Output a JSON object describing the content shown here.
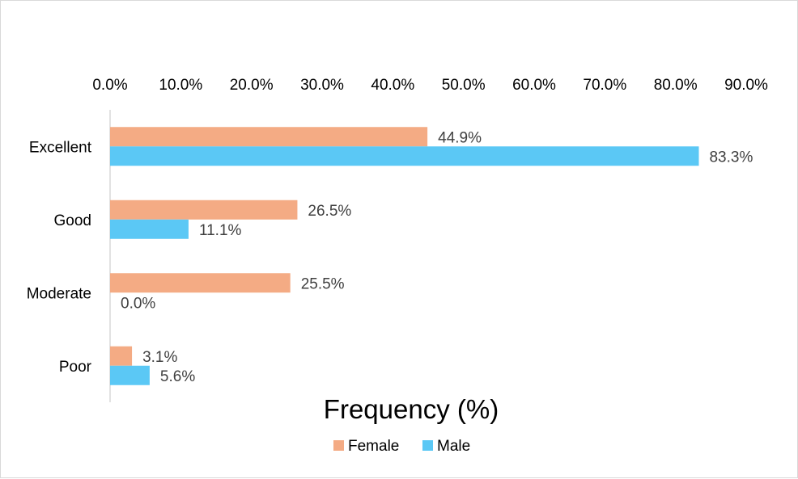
{
  "chart_data": {
    "type": "bar",
    "orientation": "horizontal",
    "categories": [
      "Excellent",
      "Good",
      "Moderate",
      "Poor"
    ],
    "series": [
      {
        "name": "Female",
        "color": "#F4AB84",
        "values": [
          44.9,
          26.5,
          25.5,
          3.1
        ],
        "labels": [
          "44.9%",
          "26.5%",
          "25.5%",
          "3.1%"
        ]
      },
      {
        "name": "Male",
        "color": "#5BC8F5",
        "values": [
          83.3,
          11.1,
          0.0,
          5.6
        ],
        "labels": [
          "83.3%",
          "11.1%",
          "0.0%",
          "5.6%"
        ]
      }
    ],
    "xaxis": {
      "position": "top",
      "ticks": [
        0,
        10,
        20,
        30,
        40,
        50,
        60,
        70,
        80,
        90
      ],
      "tick_labels": [
        "0.0%",
        "10.0%",
        "20.0%",
        "30.0%",
        "40.0%",
        "50.0%",
        "60.0%",
        "70.0%",
        "80.0%",
        "90.0%"
      ],
      "xlim": [
        0,
        90
      ]
    },
    "xlabel": "Frequency (%)",
    "ylabel": "",
    "grid": false,
    "legend": "bottom"
  }
}
